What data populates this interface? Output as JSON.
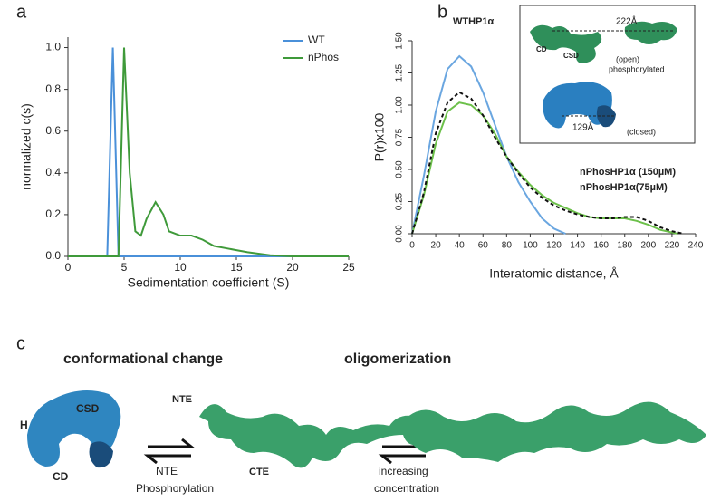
{
  "panel_labels": [
    "a",
    "b",
    "c"
  ],
  "chart_data": [
    {
      "type": "line",
      "xlabel": "Sedimentation coefficient (S)",
      "ylabel": "normalized c(s)",
      "xlim": [
        0,
        25
      ],
      "xticks": [
        0,
        5,
        10,
        15,
        20,
        25
      ],
      "ylim": [
        0,
        1.05
      ],
      "yticks": [
        {
          "value": 0,
          "label": "0.0"
        },
        0.2,
        0.4,
        0.6,
        0.8,
        {
          "value": 1,
          "label": "1.0"
        }
      ],
      "legend": "upper right",
      "series": [
        {
          "name": "WT",
          "color": "#4a90d9",
          "x": [
            0,
            3.5,
            4,
            4.5,
            5,
            25
          ],
          "values": [
            0,
            0,
            1.0,
            0,
            0,
            0
          ]
        },
        {
          "name": "nPhos",
          "color": "#3f9a3a",
          "x": [
            0,
            4.5,
            5,
            5.5,
            6,
            6.5,
            7,
            7.8,
            8.5,
            9,
            10,
            11,
            12,
            13,
            14,
            15,
            16,
            18,
            20,
            25
          ],
          "values": [
            0,
            0,
            1.0,
            0.4,
            0.12,
            0.1,
            0.18,
            0.26,
            0.2,
            0.12,
            0.1,
            0.1,
            0.08,
            0.05,
            0.04,
            0.03,
            0.02,
            0.005,
            0,
            0
          ]
        }
      ]
    },
    {
      "type": "line",
      "xlabel": "Interatomic distance, Å",
      "ylabel": "P(r)x100",
      "xlim": [
        0,
        240
      ],
      "xticks": [
        0,
        20,
        40,
        60,
        80,
        100,
        120,
        140,
        160,
        180,
        200,
        220,
        240
      ],
      "ylim": [
        0,
        1.5
      ],
      "yticks": [
        {
          "value": 0,
          "label": "0.00"
        },
        0.25,
        {
          "value": 0.5,
          "label": "0.50"
        },
        0.75,
        {
          "value": 1,
          "label": "1.00"
        },
        1.25,
        {
          "value": 1.5,
          "label": "1.50"
        }
      ],
      "series": [
        {
          "name": "WTHP1α",
          "color": "#6aa6e0",
          "x": [
            0,
            10,
            20,
            30,
            40,
            50,
            60,
            70,
            80,
            90,
            100,
            110,
            120,
            130
          ],
          "values": [
            0,
            0.45,
            0.95,
            1.28,
            1.38,
            1.3,
            1.1,
            0.85,
            0.6,
            0.4,
            0.25,
            0.12,
            0.04,
            0
          ]
        },
        {
          "name": "nPhosHP1α (150µM)",
          "color": "#6cc04a",
          "x": [
            0,
            10,
            20,
            30,
            40,
            50,
            60,
            70,
            80,
            90,
            100,
            110,
            120,
            130,
            140,
            150,
            160,
            170,
            180,
            190,
            200,
            210,
            225
          ],
          "values": [
            0,
            0.3,
            0.7,
            0.95,
            1.02,
            1.0,
            0.92,
            0.78,
            0.6,
            0.48,
            0.38,
            0.3,
            0.24,
            0.2,
            0.16,
            0.13,
            0.12,
            0.12,
            0.12,
            0.1,
            0.07,
            0.03,
            0
          ]
        },
        {
          "name": "nPhosHP1α(75µM)",
          "color": "#111111",
          "dash": true,
          "x": [
            0,
            10,
            20,
            30,
            40,
            50,
            60,
            70,
            80,
            90,
            100,
            110,
            120,
            130,
            140,
            150,
            160,
            170,
            180,
            190,
            200,
            210,
            220,
            230
          ],
          "values": [
            0,
            0.32,
            0.78,
            1.02,
            1.1,
            1.05,
            0.92,
            0.75,
            0.6,
            0.47,
            0.36,
            0.28,
            0.22,
            0.18,
            0.15,
            0.13,
            0.12,
            0.12,
            0.13,
            0.13,
            0.1,
            0.05,
            0.02,
            0
          ]
        }
      ]
    }
  ],
  "inset": {
    "open_distance": "222Å",
    "cd": "CD",
    "csd": "CSD",
    "open": "(open)",
    "phosphorylated": "phosphorylated",
    "closed_distance": "129Å",
    "closed": "(closed)"
  },
  "panel_c": {
    "conformational_change": "conformational change",
    "oligomerization": "oligomerization",
    "csd": "CSD",
    "h": "H",
    "cd": "CD",
    "nte_top": "NTE",
    "cte": "CTE",
    "nte_arrow": "NTE",
    "phosphorylation": "Phosphorylation",
    "increasing": "increasing",
    "concentration": "concentration"
  }
}
